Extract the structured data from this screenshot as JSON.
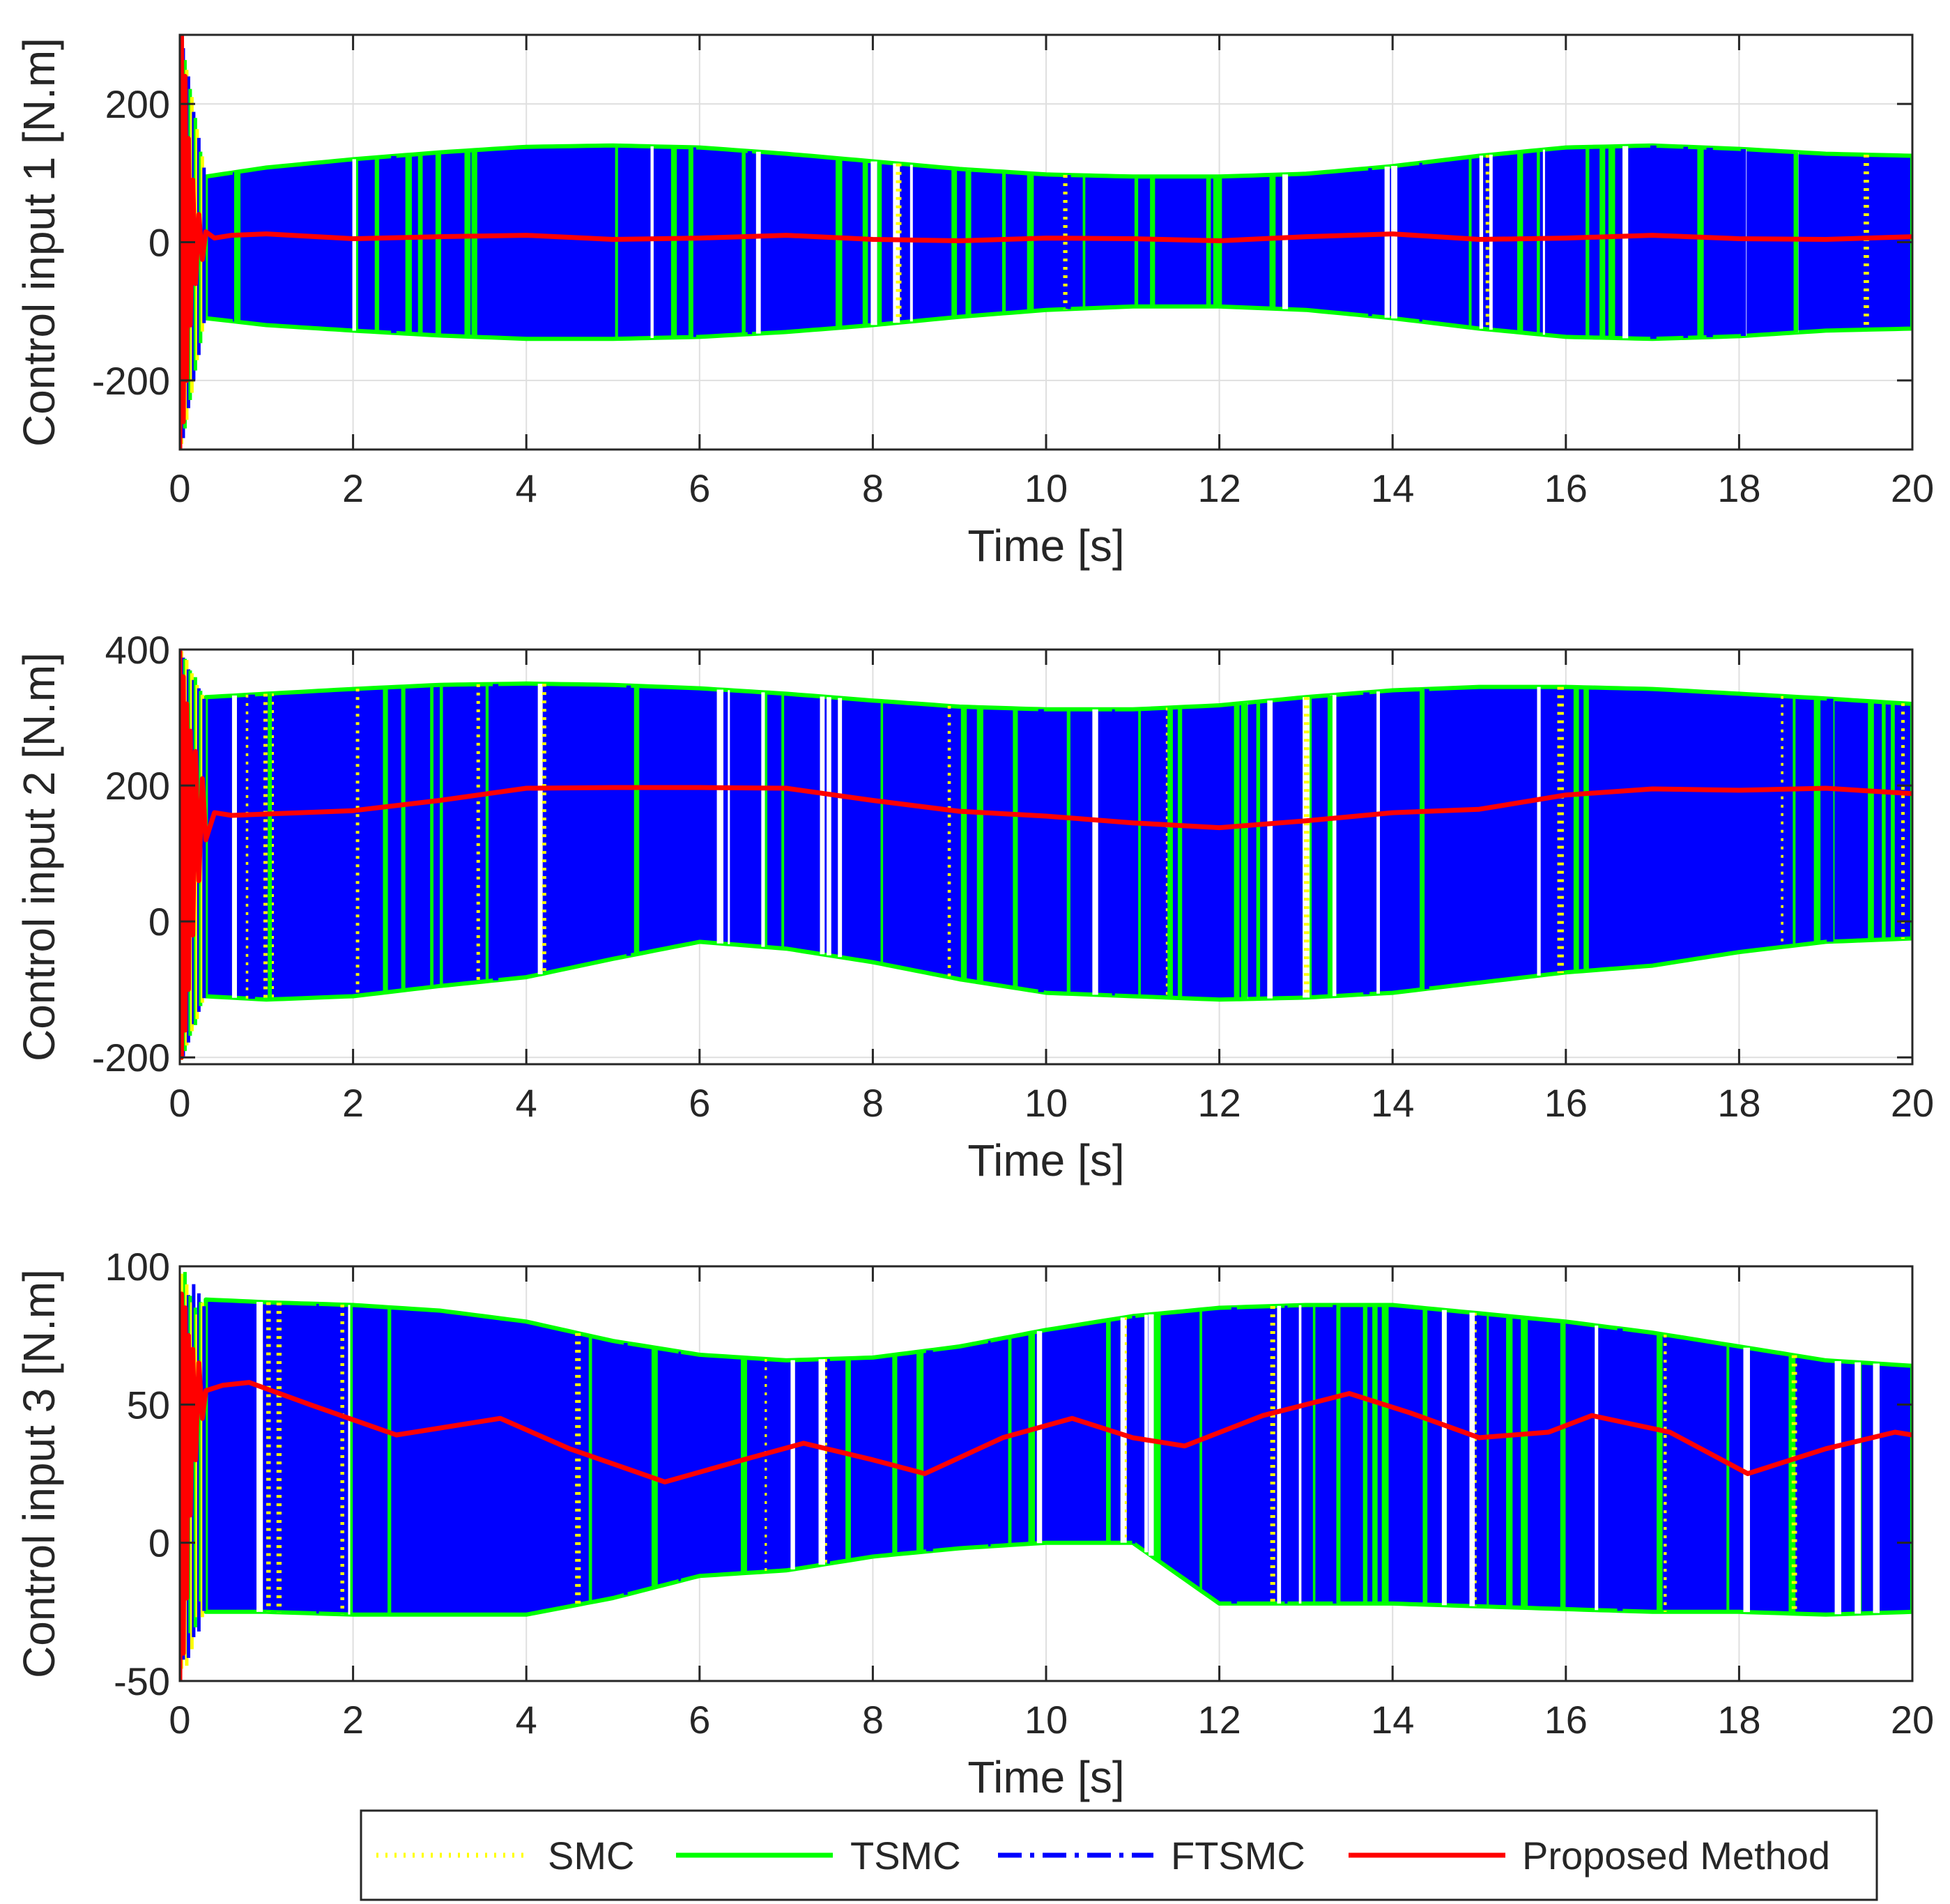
{
  "chart_data": [
    {
      "type": "line",
      "title": "",
      "xlabel": "Time [s]",
      "ylabel": "Control input 1 [N.m]",
      "xlim": [
        0,
        20
      ],
      "ylim": [
        -300,
        300
      ],
      "xticks": [
        0,
        2,
        4,
        6,
        8,
        10,
        12,
        14,
        16,
        18,
        20
      ],
      "yticks": [
        -200,
        0,
        200
      ],
      "grid": true,
      "chattering_band": {
        "series": [
          "SMC",
          "TSMC",
          "FTSMC"
        ],
        "t": [
          0.3,
          1,
          2,
          3,
          4,
          5,
          6,
          7,
          8,
          9,
          10,
          11,
          12,
          13,
          14,
          15,
          16,
          17,
          18,
          19,
          20
        ],
        "upper": [
          95,
          108,
          120,
          130,
          138,
          140,
          137,
          128,
          117,
          106,
          98,
          95,
          95,
          99,
          110,
          125,
          137,
          140,
          135,
          128,
          125
        ],
        "lower": [
          -110,
          -120,
          -128,
          -135,
          -140,
          -140,
          -137,
          -130,
          -120,
          -108,
          -98,
          -93,
          -93,
          -98,
          -110,
          -125,
          -137,
          -140,
          -136,
          -128,
          -125
        ]
      },
      "series": [
        {
          "name": "Proposed Method",
          "x": [
            0,
            0.02,
            0.04,
            0.06,
            0.08,
            0.1,
            0.12,
            0.15,
            0.18,
            0.22,
            0.26,
            0.3,
            0.4,
            0.6,
            1,
            2,
            3,
            4,
            5,
            6,
            7,
            8,
            9,
            10,
            11,
            12,
            13,
            14,
            15,
            16,
            17,
            18,
            19,
            20
          ],
          "y": [
            -300,
            300,
            -260,
            240,
            -200,
            150,
            -120,
            90,
            -60,
            40,
            -25,
            15,
            6,
            10,
            12,
            5,
            8,
            10,
            4,
            6,
            10,
            4,
            2,
            6,
            5,
            2,
            8,
            12,
            4,
            6,
            10,
            5,
            4,
            8
          ]
        }
      ]
    },
    {
      "type": "line",
      "title": "",
      "xlabel": "Time [s]",
      "ylabel": "Control input 2 [N.m]",
      "xlim": [
        0,
        20
      ],
      "ylim": [
        -210,
        400
      ],
      "xticks": [
        0,
        2,
        4,
        6,
        8,
        10,
        12,
        14,
        16,
        18,
        20
      ],
      "yticks": [
        -200,
        0,
        200,
        400
      ],
      "grid": true,
      "chattering_band": {
        "series": [
          "SMC",
          "TSMC",
          "FTSMC"
        ],
        "t": [
          0.3,
          1,
          2,
          3,
          4,
          5,
          6,
          7,
          8,
          9,
          10,
          11,
          12,
          13,
          14,
          15,
          16,
          17,
          18,
          19,
          20
        ],
        "upper": [
          330,
          335,
          342,
          348,
          350,
          348,
          343,
          335,
          325,
          316,
          312,
          312,
          318,
          330,
          340,
          345,
          345,
          342,
          335,
          328,
          320
        ],
        "lower": [
          -110,
          -115,
          -110,
          -95,
          -82,
          -55,
          -30,
          -40,
          -60,
          -85,
          -105,
          -110,
          -115,
          -112,
          -105,
          -90,
          -75,
          -65,
          -45,
          -30,
          -25
        ]
      },
      "series": [
        {
          "name": "Proposed Method",
          "x": [
            0,
            0.02,
            0.04,
            0.06,
            0.08,
            0.1,
            0.12,
            0.15,
            0.18,
            0.22,
            0.26,
            0.3,
            0.4,
            0.6,
            1,
            2,
            3,
            4,
            5,
            6,
            7,
            8,
            9,
            10,
            11,
            12,
            13,
            14,
            15,
            16,
            17,
            18,
            19,
            20
          ],
          "y": [
            400,
            -200,
            360,
            -160,
            320,
            -100,
            280,
            -20,
            250,
            60,
            210,
            120,
            160,
            156,
            158,
            163,
            178,
            196,
            197,
            197,
            196,
            178,
            162,
            155,
            145,
            138,
            148,
            160,
            165,
            186,
            195,
            193,
            196,
            188
          ]
        }
      ]
    },
    {
      "type": "line",
      "title": "",
      "xlabel": "Time [s]",
      "ylabel": "Control input 3 [N.m]",
      "xlim": [
        0,
        20
      ],
      "ylim": [
        -50,
        100
      ],
      "xticks": [
        0,
        2,
        4,
        6,
        8,
        10,
        12,
        14,
        16,
        18,
        20
      ],
      "yticks": [
        -50,
        0,
        50,
        100
      ],
      "grid": true,
      "chattering_band": {
        "series": [
          "SMC",
          "TSMC",
          "FTSMC"
        ],
        "t": [
          0.3,
          1,
          2,
          3,
          4,
          5,
          6,
          7,
          8,
          9,
          10,
          11,
          12,
          13,
          14,
          15,
          16,
          17,
          18,
          19,
          20
        ],
        "upper": [
          88,
          87,
          86,
          84,
          80,
          73,
          68,
          66,
          67,
          71,
          77,
          82,
          85,
          86,
          86,
          83,
          80,
          76,
          71,
          66,
          64
        ],
        "lower": [
          -25,
          -25,
          -26,
          -26,
          -26,
          -20,
          -12,
          -10,
          -5,
          -2,
          0,
          0,
          -22,
          -22,
          -22,
          -23,
          -24,
          -25,
          -25,
          -26,
          -25
        ]
      },
      "series": [
        {
          "name": "Proposed Method",
          "x": [
            0,
            0.02,
            0.04,
            0.06,
            0.08,
            0.1,
            0.12,
            0.15,
            0.18,
            0.22,
            0.26,
            0.3,
            0.5,
            0.8,
            1.5,
            2.5,
            3.7,
            4.5,
            5.6,
            6.5,
            7.2,
            8,
            8.6,
            9.5,
            10.3,
            11,
            11.6,
            12.5,
            13.5,
            14.2,
            15,
            15.8,
            16.3,
            17.2,
            18.1,
            19,
            19.8,
            20
          ],
          "y": [
            -50,
            90,
            -40,
            85,
            -20,
            75,
            10,
            70,
            30,
            65,
            45,
            55,
            57,
            58,
            50,
            39,
            45,
            34,
            22,
            30,
            36,
            30,
            25,
            38,
            45,
            38,
            35,
            46,
            54,
            47,
            38,
            40,
            46,
            40,
            25,
            34,
            40,
            39
          ]
        }
      ]
    }
  ],
  "legend": {
    "entries": [
      {
        "name": "SMC",
        "color": "#ffff00",
        "style": "dotted"
      },
      {
        "name": "TSMC",
        "color": "#00ff00",
        "style": "solid"
      },
      {
        "name": "FTSMC",
        "color": "#0000ff",
        "style": "dashdot"
      },
      {
        "name": "Proposed Method",
        "color": "#ff0000",
        "style": "solid"
      }
    ]
  }
}
